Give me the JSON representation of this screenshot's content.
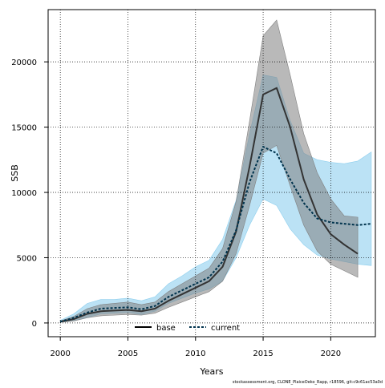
{
  "chart_data": {
    "type": "line",
    "title": "",
    "xlabel": "Years",
    "ylabel": "SSB",
    "xlim": [
      1999.1,
      2023.3
    ],
    "ylim": [
      -1050,
      24000
    ],
    "x_ticks": [
      "2000",
      "2005",
      "2010",
      "2015",
      "2020"
    ],
    "y_ticks": [
      "0",
      "5000",
      "10000",
      "15000",
      "20000"
    ],
    "grid": true,
    "legend_position": "bottom-center",
    "footer": "stockassessment.org, CLONE_PlaiceOeko_Rapp, r18596, git:c9c61ac53a0d",
    "series": [
      {
        "name": "base",
        "color": "#333333",
        "band_color": "#808080",
        "x": [
          2000,
          2001,
          2002,
          2003,
          2004,
          2005,
          2006,
          2007,
          2008,
          2009,
          2010,
          2011,
          2012,
          2013,
          2014,
          2015,
          2016,
          2017,
          2018,
          2019,
          2020,
          2021,
          2022
        ],
        "values": [
          100,
          300,
          700,
          900,
          950,
          1000,
          900,
          1100,
          1700,
          2200,
          2700,
          3200,
          4300,
          7000,
          12000,
          17500,
          18000,
          15000,
          11000,
          8300,
          6800,
          6000,
          5300
        ],
        "lower": [
          50,
          150,
          400,
          550,
          600,
          650,
          600,
          750,
          1200,
          1600,
          2000,
          2400,
          3200,
          5300,
          9000,
          13000,
          13600,
          10500,
          7500,
          5500,
          4500,
          4000,
          3500
        ],
        "upper": [
          150,
          500,
          1100,
          1400,
          1500,
          1600,
          1400,
          1600,
          2400,
          3000,
          3600,
          4200,
          5700,
          9300,
          15500,
          22000,
          23200,
          19000,
          14500,
          11500,
          9500,
          8200,
          8100
        ]
      },
      {
        "name": "current",
        "color": "#00334d",
        "band_color": "#8ecfee",
        "x": [
          2000,
          2001,
          2002,
          2003,
          2004,
          2005,
          2006,
          2007,
          2008,
          2009,
          2010,
          2011,
          2012,
          2013,
          2014,
          2015,
          2016,
          2017,
          2018,
          2019,
          2020,
          2021,
          2022,
          2023
        ],
        "values": [
          100,
          400,
          800,
          1100,
          1150,
          1200,
          1050,
          1300,
          2000,
          2500,
          3000,
          3500,
          4700,
          7100,
          10800,
          13500,
          13000,
          11000,
          9200,
          8000,
          7700,
          7600,
          7500,
          7600
        ],
        "lower": [
          50,
          200,
          400,
          700,
          750,
          800,
          650,
          900,
          1500,
          1900,
          2300,
          2600,
          3200,
          5000,
          7500,
          9500,
          9000,
          7200,
          6000,
          5200,
          4900,
          4700,
          4500,
          4400
        ],
        "upper": [
          200,
          700,
          1500,
          1800,
          1800,
          1900,
          1700,
          2000,
          3000,
          3600,
          4300,
          4800,
          6400,
          9400,
          14500,
          19000,
          18800,
          15500,
          13000,
          12500,
          12300,
          12200,
          12400,
          13100
        ]
      }
    ]
  }
}
